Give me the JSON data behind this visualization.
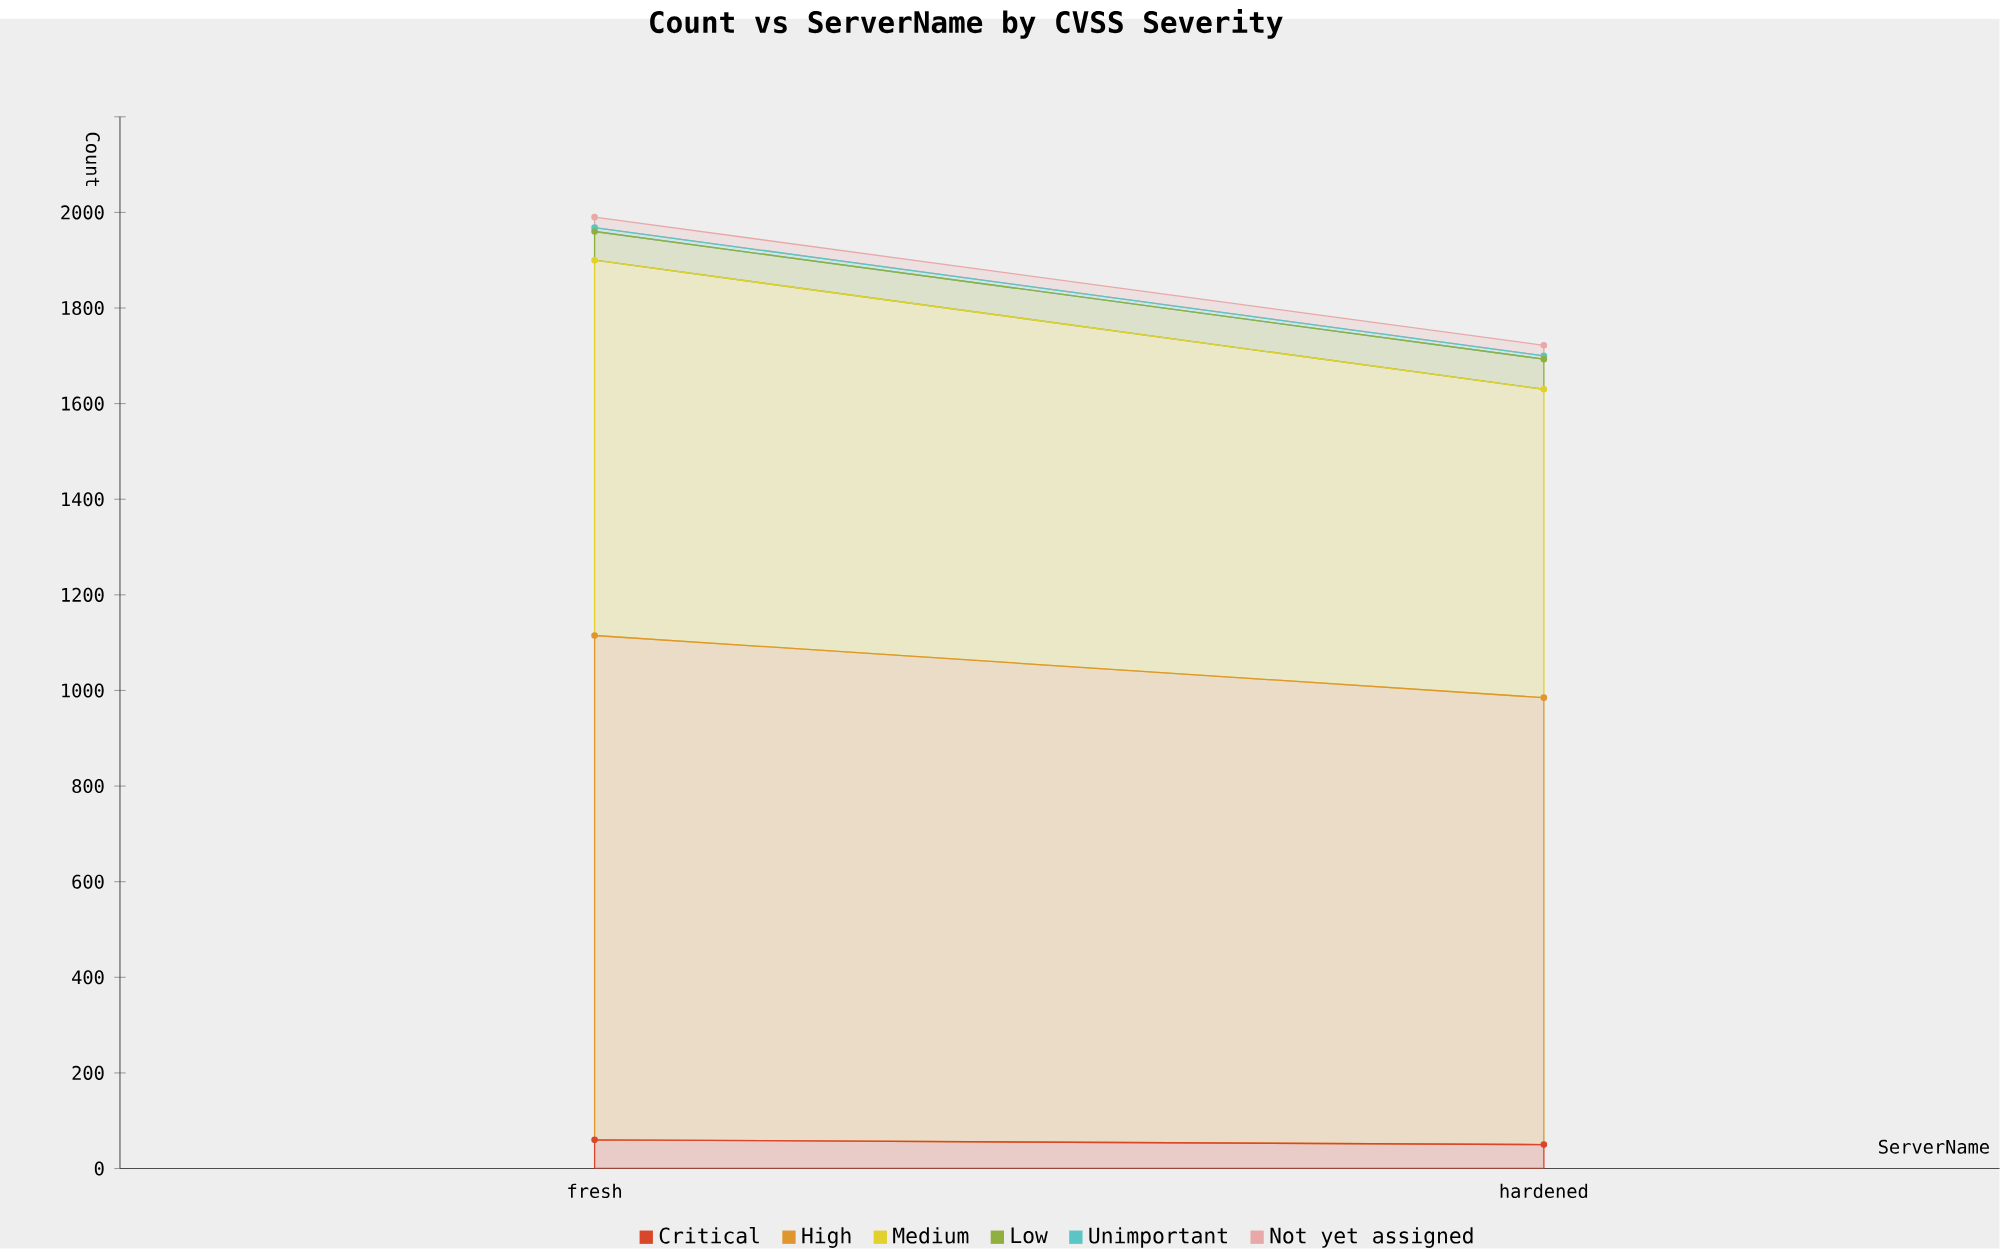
{
  "chart_data": {
    "type": "area",
    "title": "Count vs ServerName by CVSS Severity",
    "xlabel": "ServerName",
    "ylabel": "Count",
    "categories": [
      "fresh",
      "hardened"
    ],
    "stacked": true,
    "marker": "circle",
    "legend": "bottom",
    "ylim": [
      0,
      2200
    ],
    "yticks": [
      0,
      200,
      400,
      600,
      800,
      1000,
      1200,
      1400,
      1600,
      1800,
      2000,
      {
        "value": 2200,
        "label": null
      }
    ],
    "series": [
      {
        "name": "Critical",
        "color": "#d9472b",
        "values": [
          60,
          50
        ]
      },
      {
        "name": "High",
        "color": "#e0962f",
        "values": [
          1055,
          935
        ]
      },
      {
        "name": "Medium",
        "color": "#e0d12f",
        "values": [
          785,
          645
        ]
      },
      {
        "name": "Low",
        "color": "#8fb03f",
        "values": [
          60,
          63
        ]
      },
      {
        "name": "Unimportant",
        "color": "#5bc4c4",
        "values": [
          8,
          7
        ]
      },
      {
        "name": "Not yet assigned",
        "color": "#e8a8a8",
        "values": [
          22,
          22
        ]
      }
    ]
  }
}
